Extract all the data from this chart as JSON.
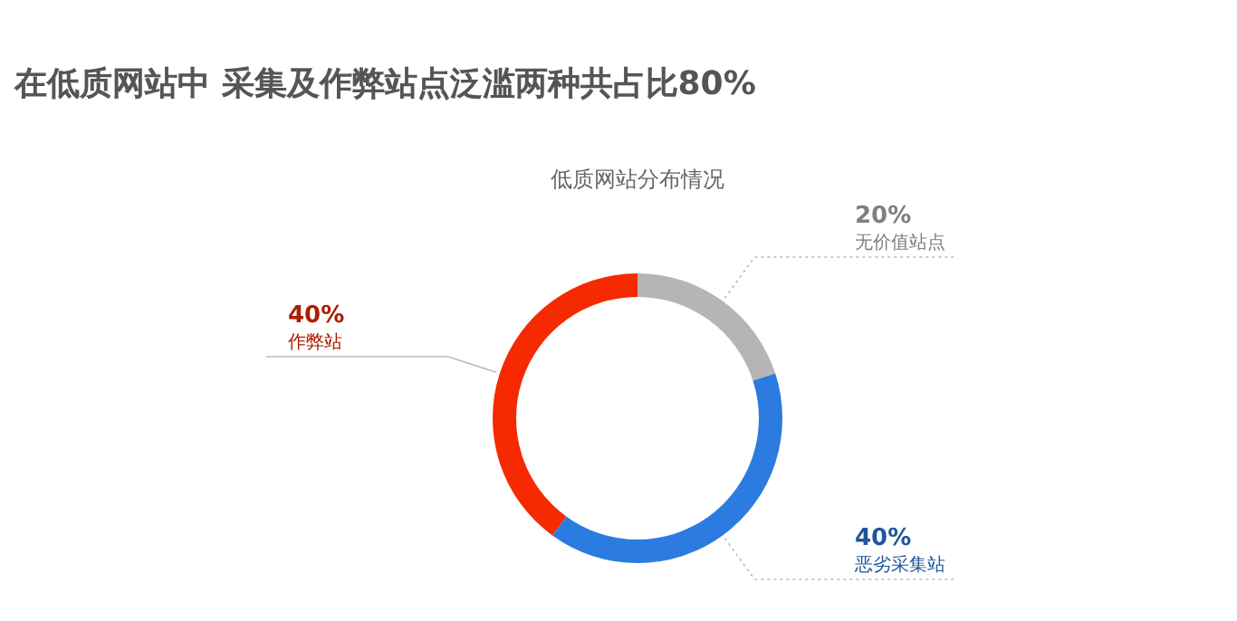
{
  "chart_data": {
    "type": "donut",
    "title": "在低质网站中 采集及作弊站点泛滥两种共占比80%",
    "subtitle": "低质网站分布情况",
    "categories": [
      "无价值站点",
      "恶劣采集站",
      "作弊站"
    ],
    "values": [
      20,
      40,
      40
    ],
    "colors": [
      "#b5b5b5",
      "#2b7be0",
      "#f52a00"
    ],
    "value_labels": [
      "20%",
      "40%",
      "40%"
    ]
  }
}
